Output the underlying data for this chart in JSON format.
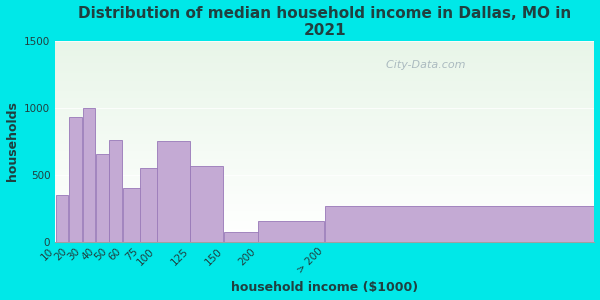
{
  "title": "Distribution of median household income in Dallas, MO in\n2021",
  "xlabel": "household income ($1000)",
  "ylabel": "households",
  "bar_labels": [
    "10",
    "20",
    "30",
    "40",
    "50",
    "60",
    "75",
    "100",
    "125",
    "150",
    "200",
    "> 200"
  ],
  "bar_values": [
    350,
    930,
    1000,
    650,
    760,
    400,
    550,
    750,
    565,
    75,
    155,
    265
  ],
  "bar_widths": [
    10,
    10,
    10,
    10,
    10,
    15,
    25,
    25,
    25,
    50,
    50,
    200
  ],
  "bar_lefts": [
    0,
    10,
    20,
    30,
    40,
    50,
    62.5,
    75,
    100,
    125,
    150,
    200
  ],
  "bar_color": "#c4aad4",
  "bar_edge_color": "#9878b8",
  "bg_color": "#00e8e8",
  "plot_bg_color": "#e8f5e8",
  "text_color": "#204040",
  "ylim": [
    0,
    1500
  ],
  "yticks": [
    0,
    500,
    1000,
    1500
  ],
  "xlim": [
    0,
    400
  ],
  "title_fontsize": 11,
  "axis_label_fontsize": 9,
  "tick_fontsize": 7.5,
  "watermark_text": "  City-Data.com"
}
